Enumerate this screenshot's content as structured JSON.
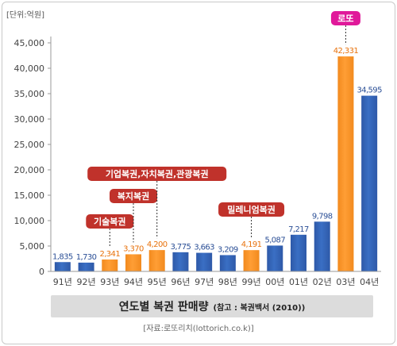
{
  "chart_data": {
    "type": "bar",
    "unit_label": "[단위:억원]",
    "categories": [
      "91년",
      "92년",
      "93년",
      "94년",
      "95년",
      "96년",
      "97년",
      "98년",
      "99년",
      "00년",
      "01년",
      "02년",
      "03년",
      "04년"
    ],
    "values": [
      1835,
      1730,
      2341,
      3370,
      4200,
      3775,
      3663,
      3209,
      4191,
      5087,
      7217,
      9798,
      42331,
      34595
    ],
    "value_labels": [
      "1,835",
      "1,730",
      "2,341",
      "3,370",
      "4,200",
      "3,775",
      "3,663",
      "3,209",
      "4,191",
      "5,087",
      "7,217",
      "9,798",
      "42,331",
      "34,595"
    ],
    "highlighted_indices": [
      2,
      3,
      4,
      8,
      12
    ],
    "ylim": [
      0,
      45000
    ],
    "yticks": [
      0,
      5000,
      10000,
      15000,
      20000,
      25000,
      30000,
      35000,
      40000,
      45000
    ],
    "ytick_labels": [
      "0",
      "5,000",
      "10,000",
      "15,000",
      "20,000",
      "25,000",
      "30,000",
      "35,000",
      "40,000",
      "45,000"
    ],
    "grid": false,
    "annotations": [
      {
        "text": "기술복권",
        "bar_index": 2,
        "color": "#c0322b"
      },
      {
        "text": "복지복권",
        "bar_index": 3,
        "color": "#c0322b"
      },
      {
        "text": "기업복권,자치복권,관광복권",
        "bar_index": 4,
        "color": "#c0322b"
      },
      {
        "text": "밀레니엄복권",
        "bar_index": 8,
        "color": "#c0322b"
      },
      {
        "text": "로또",
        "bar_index": 12,
        "color": "#e0199a"
      }
    ],
    "title": "연도별 복권 판매량",
    "subtitle": "(참고 : 복권백서 (2010))"
  },
  "source": "[자료:로또리치(lottorich.co.k)]",
  "colors": {
    "blue_bar": "#2e59a8",
    "orange_bar": "#f28a1e",
    "blue_label": "#2b4f96",
    "orange_label": "#e8720c"
  }
}
